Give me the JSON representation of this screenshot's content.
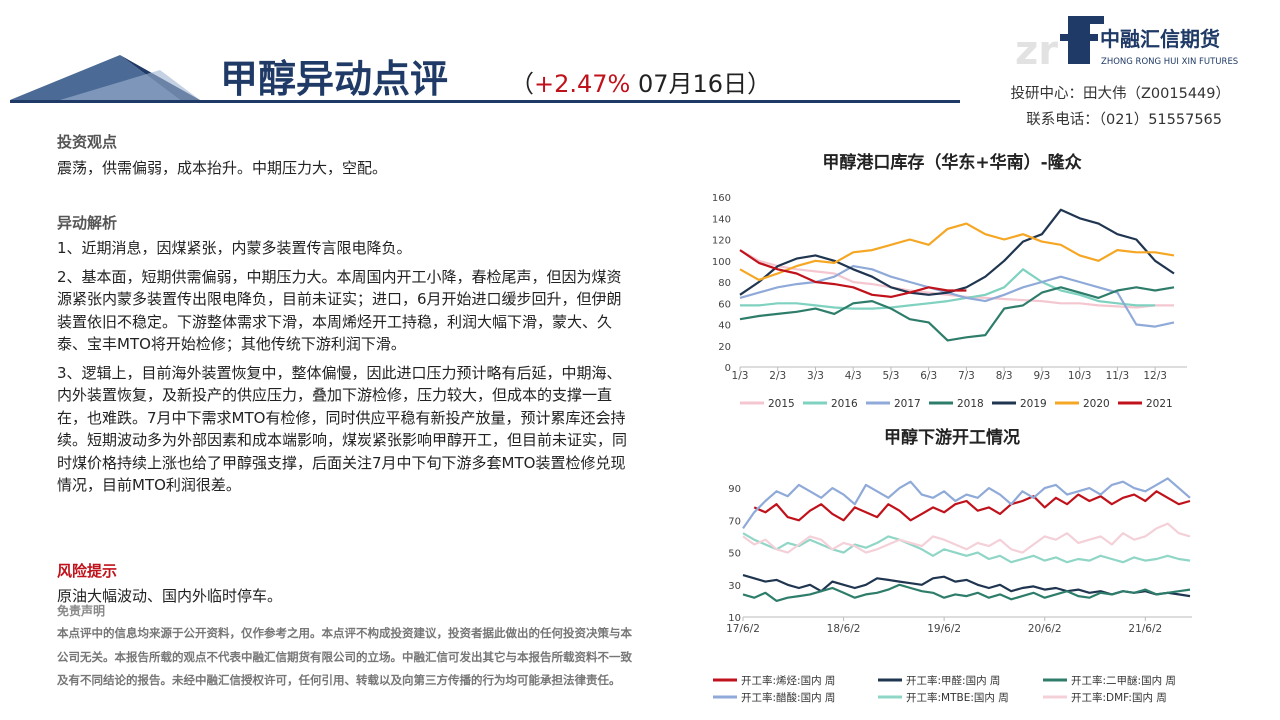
{
  "header": {
    "title": "甲醇异动点评",
    "subtitle_parts": [
      "（",
      "+2.47%",
      " 07月16日）"
    ],
    "logo_cn": "中融汇信期货",
    "logo_en": "ZHONG RONG HUI XIN FUTURES",
    "contact": [
      "投研中心：田大伟（Z0015449）",
      "联系电话：（021）51557565"
    ]
  },
  "sections": [
    {
      "heading": "投资观点",
      "paragraphs": [
        "震荡，供需偏弱，成本抬升。中期压力大，空配。"
      ]
    },
    {
      "heading": "异动解析",
      "paragraphs": [
        "1、近期消息，因煤紧张，内蒙多装置传言限电降负。",
        "2、基本面，短期供需偏弱，中期压力大。本周国内开工小降，春检尾声，但因为煤资源紧张内蒙多装置传出限电降负，目前未证实；进口，6月开始进口缓步回升，但伊朗装置依旧不稳定。下游整体需求下滑，本周烯烃开工持稳，利润大幅下滑，蒙大、久泰、宝丰MTO将开始检修；其他传统下游利润下滑。",
        "3、逻辑上，目前海外装置恢复中，整体偏慢，因此进口压力预计略有后延，中期海、内外装置恢复，及新投产的供应压力，叠加下游检修，压力较大，但成本的支撑一直在，也难跌。7月中下需求MTO有检修，同时供应平稳有新投产放量，预计累库还会持续。短期波动多为外部因素和成本端影响，煤炭紧张影响甲醇开工，但目前未证实，同时煤价格持续上涨也给了甲醇强支撑，后面关注7月中下旬下游多套MTO装置检修兑现情况，目前MTO利润很差。"
      ]
    },
    {
      "heading": "风险提示",
      "paragraphs": [
        "原油大幅波动、国内外临时停车。"
      ]
    }
  ],
  "disclaimer": {
    "heading": "免责声明",
    "text": "本点评中的信息均来源于公开资料，仅作参考之用。本点评不构成投资建议，投资者据此做出的任何投资决策与本公司无关。本报告所载的观点不代表中融汇信期货有限公司的立场。中融汇信可发出其它与本报告所载资料不一致及有不同结论的报告。未经中融汇信授权许可，任何引用、转载以及向第三方传播的行为均可能承担法律责任。"
  },
  "chart_data": [
    {
      "type": "line",
      "title": "甲醇港口库存（华东+华南）-隆众",
      "grid": false,
      "legend": "bottom",
      "categories": [
        "1/3",
        null,
        "2/3",
        null,
        "3/3",
        null,
        "4/3",
        null,
        "5/3",
        null,
        "6/3",
        null,
        "7/3",
        null,
        "8/3",
        null,
        "9/3",
        null,
        "10/3",
        null,
        "11/3",
        null,
        "12/3",
        null
      ],
      "ylim": [
        0,
        160
      ],
      "yticks": [
        0,
        20,
        40,
        60,
        80,
        100,
        120,
        140,
        160
      ],
      "series": [
        {
          "name": "2015",
          "color": "#f4c7d0",
          "values": [
            110,
            100,
            95,
            92,
            90,
            88,
            80,
            78,
            75,
            72,
            70,
            68,
            66,
            65,
            64,
            63,
            62,
            60,
            60,
            58,
            57,
            56,
            58,
            58
          ]
        },
        {
          "name": "2016",
          "color": "#7fd1c0",
          "values": [
            58,
            58,
            60,
            60,
            58,
            56,
            55,
            55,
            56,
            58,
            60,
            62,
            65,
            68,
            75,
            92,
            80,
            72,
            68,
            62,
            60,
            58,
            58,
            null
          ]
        },
        {
          "name": "2017",
          "color": "#8faad8",
          "values": [
            65,
            70,
            75,
            78,
            80,
            85,
            95,
            92,
            85,
            80,
            75,
            70,
            65,
            62,
            68,
            75,
            80,
            85,
            80,
            75,
            70,
            40,
            38,
            42
          ]
        },
        {
          "name": "2018",
          "color": "#2e7d6b",
          "values": [
            45,
            48,
            50,
            52,
            55,
            50,
            60,
            62,
            55,
            45,
            42,
            25,
            28,
            30,
            55,
            58,
            70,
            75,
            70,
            65,
            72,
            75,
            72,
            75
          ]
        },
        {
          "name": "2019",
          "color": "#1f3550",
          "values": [
            68,
            80,
            95,
            102,
            105,
            100,
            92,
            85,
            75,
            70,
            68,
            70,
            75,
            85,
            100,
            118,
            125,
            148,
            140,
            135,
            125,
            120,
            100,
            88
          ]
        },
        {
          "name": "2020",
          "color": "#f5a623",
          "values": [
            92,
            82,
            88,
            95,
            100,
            98,
            108,
            110,
            115,
            120,
            115,
            130,
            135,
            125,
            120,
            125,
            118,
            115,
            105,
            100,
            110,
            108,
            108,
            105
          ]
        },
        {
          "name": "2021",
          "color": "#c0121b",
          "values": [
            110,
            98,
            92,
            88,
            80,
            78,
            75,
            68,
            66,
            70,
            75,
            72,
            72,
            null,
            null,
            null,
            null,
            null,
            null,
            null,
            null,
            null,
            null,
            null
          ]
        }
      ]
    },
    {
      "type": "line",
      "title": "甲醇下游开工情况",
      "grid": false,
      "legend": "bottom",
      "categories": [
        "17/6/2",
        null,
        null,
        null,
        null,
        null,
        null,
        null,
        null,
        "18/6/2",
        null,
        null,
        null,
        null,
        null,
        null,
        null,
        null,
        "19/6/2",
        null,
        null,
        null,
        null,
        null,
        null,
        null,
        null,
        "20/6/2",
        null,
        null,
        null,
        null,
        null,
        null,
        null,
        null,
        "21/6/2",
        null,
        null,
        null,
        null
      ],
      "ylim": [
        10,
        100
      ],
      "yticks": [
        10,
        30,
        50,
        70,
        90
      ],
      "series": [
        {
          "name": "开工率:烯烃:国内 周",
          "color": "#c0121b",
          "values": [
            null,
            78,
            75,
            80,
            72,
            70,
            76,
            80,
            74,
            70,
            78,
            75,
            72,
            80,
            76,
            70,
            74,
            78,
            75,
            80,
            82,
            76,
            78,
            74,
            80,
            82,
            85,
            78,
            84,
            80,
            86,
            82,
            85,
            80,
            84,
            86,
            82,
            88,
            84,
            80,
            82
          ]
        },
        {
          "name": "开工率:甲醛:国内 周",
          "color": "#1f3550",
          "values": [
            36,
            34,
            32,
            33,
            30,
            28,
            30,
            26,
            32,
            30,
            28,
            30,
            34,
            33,
            32,
            31,
            30,
            34,
            35,
            32,
            33,
            30,
            28,
            30,
            26,
            28,
            29,
            27,
            28,
            26,
            27,
            25,
            26,
            24,
            26,
            25,
            26,
            24,
            25,
            24,
            23
          ]
        },
        {
          "name": "开工率:二甲醚:国内 周",
          "color": "#2e7d6b",
          "values": [
            24,
            22,
            25,
            20,
            22,
            23,
            24,
            26,
            28,
            25,
            22,
            24,
            25,
            27,
            30,
            28,
            26,
            25,
            22,
            24,
            23,
            25,
            22,
            24,
            21,
            23,
            25,
            22,
            24,
            26,
            23,
            22,
            25,
            24,
            26,
            25,
            27,
            24,
            25,
            26,
            27
          ]
        },
        {
          "name": "开工率:醋酸:国内 周",
          "color": "#8faad8",
          "values": [
            65,
            75,
            82,
            88,
            85,
            92,
            88,
            84,
            90,
            86,
            80,
            92,
            88,
            84,
            90,
            94,
            86,
            84,
            88,
            82,
            86,
            84,
            90,
            86,
            80,
            88,
            84,
            90,
            92,
            86,
            88,
            90,
            86,
            92,
            94,
            90,
            88,
            92,
            96,
            90,
            84
          ]
        },
        {
          "name": "开工率:MTBE:国内 周",
          "color": "#8fd6c6",
          "values": [
            62,
            58,
            55,
            52,
            56,
            54,
            58,
            55,
            52,
            50,
            55,
            53,
            56,
            60,
            58,
            55,
            52,
            48,
            52,
            50,
            48,
            50,
            46,
            48,
            44,
            46,
            48,
            45,
            47,
            44,
            46,
            45,
            48,
            46,
            44,
            47,
            45,
            46,
            48,
            46,
            45
          ]
        },
        {
          "name": "开工率:DMF:国内 周",
          "color": "#f4d0d8",
          "values": [
            60,
            55,
            58,
            52,
            50,
            55,
            60,
            58,
            52,
            56,
            54,
            50,
            52,
            55,
            58,
            56,
            54,
            60,
            58,
            55,
            52,
            56,
            54,
            58,
            52,
            50,
            55,
            60,
            58,
            62,
            56,
            58,
            60,
            55,
            62,
            58,
            60,
            65,
            68,
            62,
            60
          ]
        }
      ]
    }
  ]
}
